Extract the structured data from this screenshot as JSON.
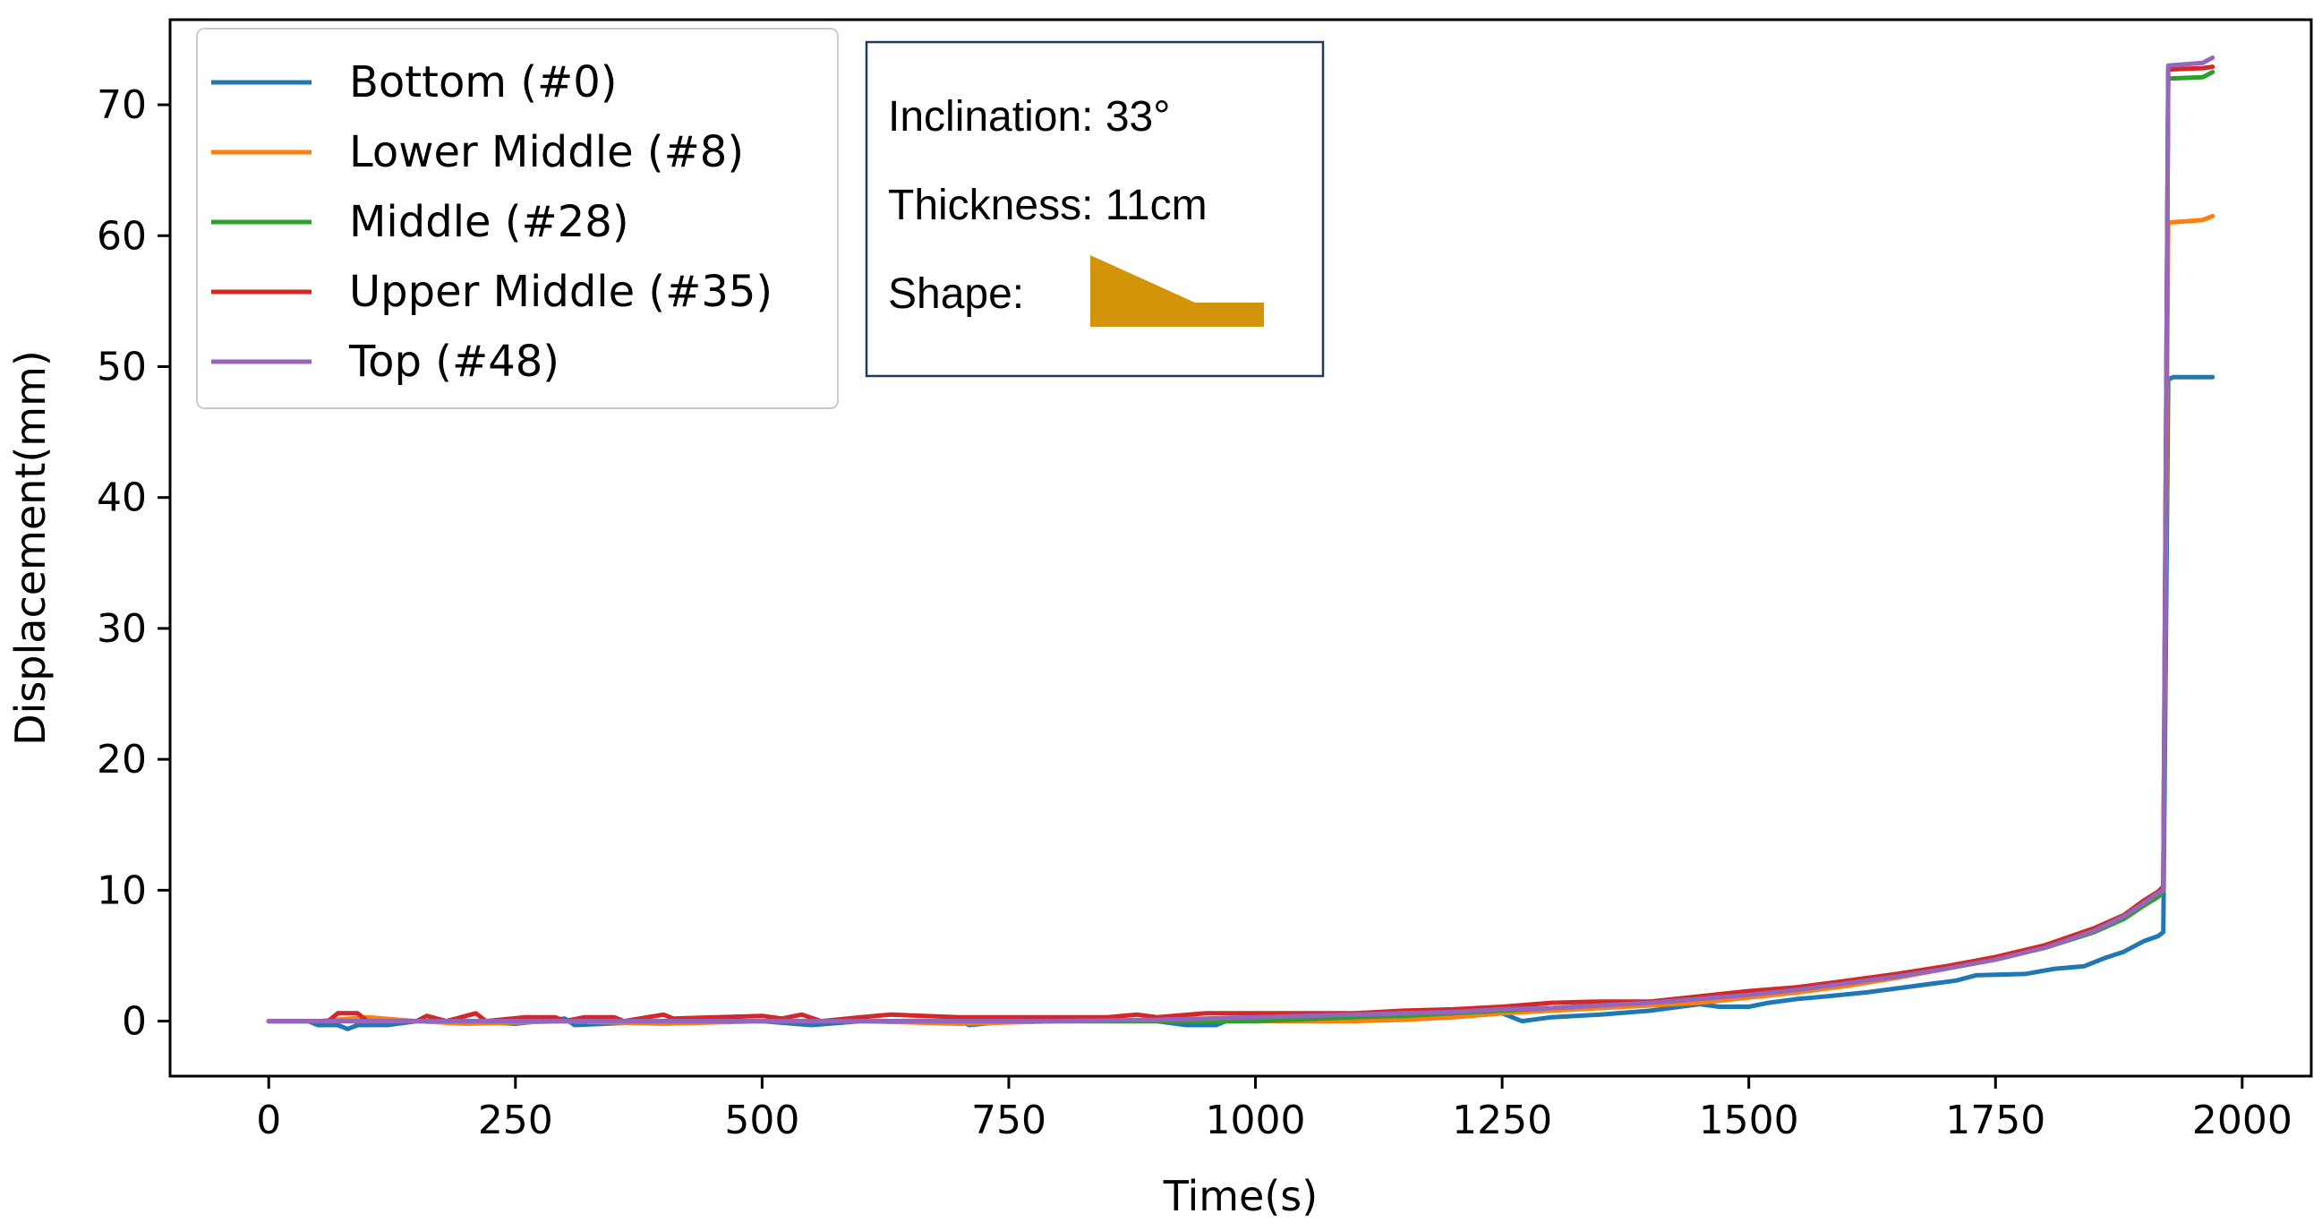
{
  "chart_data": {
    "type": "line",
    "title": "",
    "xlabel": "Time(s)",
    "ylabel": "Displacement(mm)",
    "xlim": [
      -100,
      2070
    ],
    "ylim": [
      -4.2,
      76.5
    ],
    "xticks": [
      0,
      250,
      500,
      750,
      1000,
      1250,
      1500,
      1750,
      2000
    ],
    "yticks": [
      0,
      10,
      20,
      30,
      40,
      50,
      60,
      70
    ],
    "grid": false,
    "legend_position": "upper-left",
    "series": [
      {
        "name": "Bottom (#0)",
        "color": "#1f77b4",
        "points": [
          [
            0,
            0
          ],
          [
            40,
            0
          ],
          [
            50,
            -0.3
          ],
          [
            70,
            -0.3
          ],
          [
            80,
            -0.6
          ],
          [
            90,
            -0.3
          ],
          [
            120,
            -0.3
          ],
          [
            150,
            0
          ],
          [
            200,
            0
          ],
          [
            250,
            -0.2
          ],
          [
            300,
            0.2
          ],
          [
            310,
            -0.3
          ],
          [
            400,
            0
          ],
          [
            500,
            0
          ],
          [
            550,
            -0.3
          ],
          [
            600,
            0
          ],
          [
            700,
            0
          ],
          [
            710,
            -0.3
          ],
          [
            750,
            0
          ],
          [
            900,
            0
          ],
          [
            930,
            -0.3
          ],
          [
            960,
            -0.3
          ],
          [
            970,
            0
          ],
          [
            1000,
            0
          ],
          [
            1100,
            0.2
          ],
          [
            1200,
            0.3
          ],
          [
            1250,
            0.6
          ],
          [
            1270,
            0
          ],
          [
            1300,
            0.3
          ],
          [
            1350,
            0.5
          ],
          [
            1400,
            0.8
          ],
          [
            1450,
            1.3
          ],
          [
            1470,
            1.1
          ],
          [
            1500,
            1.1
          ],
          [
            1520,
            1.4
          ],
          [
            1550,
            1.7
          ],
          [
            1580,
            1.9
          ],
          [
            1620,
            2.2
          ],
          [
            1650,
            2.5
          ],
          [
            1680,
            2.8
          ],
          [
            1710,
            3.1
          ],
          [
            1730,
            3.5
          ],
          [
            1780,
            3.6
          ],
          [
            1810,
            4.0
          ],
          [
            1840,
            4.2
          ],
          [
            1860,
            4.8
          ],
          [
            1880,
            5.3
          ],
          [
            1900,
            6.1
          ],
          [
            1915,
            6.5
          ],
          [
            1920,
            6.8
          ],
          [
            1925,
            49.0
          ],
          [
            1930,
            49.2
          ],
          [
            1970,
            49.2
          ]
        ]
      },
      {
        "name": "Lower Middle (#8)",
        "color": "#ff7f0e",
        "points": [
          [
            0,
            0
          ],
          [
            50,
            0
          ],
          [
            100,
            0.3
          ],
          [
            150,
            0
          ],
          [
            200,
            -0.2
          ],
          [
            300,
            0
          ],
          [
            400,
            -0.2
          ],
          [
            500,
            0
          ],
          [
            600,
            0
          ],
          [
            700,
            -0.2
          ],
          [
            800,
            0
          ],
          [
            900,
            0
          ],
          [
            1000,
            0
          ],
          [
            1100,
            0
          ],
          [
            1150,
            0.1
          ],
          [
            1200,
            0.3
          ],
          [
            1250,
            0.6
          ],
          [
            1300,
            0.8
          ],
          [
            1350,
            1.0
          ],
          [
            1400,
            1.2
          ],
          [
            1450,
            1.4
          ],
          [
            1500,
            1.8
          ],
          [
            1550,
            2.2
          ],
          [
            1600,
            2.7
          ],
          [
            1650,
            3.3
          ],
          [
            1700,
            4.0
          ],
          [
            1750,
            4.8
          ],
          [
            1800,
            5.7
          ],
          [
            1850,
            6.9
          ],
          [
            1880,
            7.9
          ],
          [
            1900,
            8.9
          ],
          [
            1915,
            9.6
          ],
          [
            1920,
            10.0
          ],
          [
            1925,
            61.0
          ],
          [
            1960,
            61.2
          ],
          [
            1970,
            61.5
          ]
        ]
      },
      {
        "name": "Middle (#28)",
        "color": "#2ca02c",
        "points": [
          [
            0,
            0
          ],
          [
            100,
            0
          ],
          [
            200,
            0
          ],
          [
            300,
            0
          ],
          [
            400,
            0
          ],
          [
            500,
            0
          ],
          [
            600,
            0
          ],
          [
            700,
            0
          ],
          [
            800,
            0
          ],
          [
            900,
            0
          ],
          [
            1000,
            0
          ],
          [
            1100,
            0.3
          ],
          [
            1150,
            0.4
          ],
          [
            1200,
            0.6
          ],
          [
            1250,
            0.8
          ],
          [
            1300,
            1.0
          ],
          [
            1350,
            1.2
          ],
          [
            1400,
            1.5
          ],
          [
            1450,
            1.8
          ],
          [
            1500,
            2.1
          ],
          [
            1550,
            2.5
          ],
          [
            1600,
            3.0
          ],
          [
            1650,
            3.5
          ],
          [
            1700,
            4.1
          ],
          [
            1750,
            4.8
          ],
          [
            1800,
            5.6
          ],
          [
            1850,
            6.8
          ],
          [
            1880,
            7.8
          ],
          [
            1900,
            8.8
          ],
          [
            1915,
            9.5
          ],
          [
            1920,
            9.9
          ],
          [
            1925,
            72.0
          ],
          [
            1960,
            72.1
          ],
          [
            1970,
            72.5
          ]
        ]
      },
      {
        "name": "Upper Middle (#35)",
        "color": "#d62728",
        "points": [
          [
            0,
            0
          ],
          [
            60,
            0
          ],
          [
            70,
            0.6
          ],
          [
            90,
            0.6
          ],
          [
            100,
            0
          ],
          [
            150,
            0
          ],
          [
            160,
            0.4
          ],
          [
            180,
            0
          ],
          [
            210,
            0.6
          ],
          [
            220,
            0
          ],
          [
            260,
            0.3
          ],
          [
            290,
            0.3
          ],
          [
            300,
            0
          ],
          [
            320,
            0.3
          ],
          [
            350,
            0.3
          ],
          [
            360,
            0
          ],
          [
            400,
            0.5
          ],
          [
            410,
            0.2
          ],
          [
            500,
            0.4
          ],
          [
            520,
            0.2
          ],
          [
            540,
            0.5
          ],
          [
            560,
            0
          ],
          [
            600,
            0.3
          ],
          [
            630,
            0.5
          ],
          [
            700,
            0.3
          ],
          [
            800,
            0.3
          ],
          [
            850,
            0.3
          ],
          [
            880,
            0.5
          ],
          [
            900,
            0.3
          ],
          [
            950,
            0.6
          ],
          [
            1000,
            0.6
          ],
          [
            1100,
            0.6
          ],
          [
            1150,
            0.8
          ],
          [
            1200,
            0.9
          ],
          [
            1250,
            1.1
          ],
          [
            1300,
            1.4
          ],
          [
            1350,
            1.5
          ],
          [
            1400,
            1.5
          ],
          [
            1450,
            1.9
          ],
          [
            1500,
            2.3
          ],
          [
            1550,
            2.6
          ],
          [
            1600,
            3.1
          ],
          [
            1650,
            3.6
          ],
          [
            1700,
            4.2
          ],
          [
            1750,
            4.9
          ],
          [
            1800,
            5.8
          ],
          [
            1850,
            7.1
          ],
          [
            1880,
            8.1
          ],
          [
            1900,
            9.2
          ],
          [
            1915,
            9.9
          ],
          [
            1920,
            10.3
          ],
          [
            1925,
            72.7
          ],
          [
            1960,
            72.8
          ],
          [
            1970,
            72.9
          ]
        ]
      },
      {
        "name": "Top (#48)",
        "color": "#9467bd",
        "points": [
          [
            0,
            0
          ],
          [
            100,
            0
          ],
          [
            200,
            0
          ],
          [
            300,
            0
          ],
          [
            400,
            0
          ],
          [
            500,
            0
          ],
          [
            600,
            0
          ],
          [
            700,
            0
          ],
          [
            800,
            0
          ],
          [
            900,
            0.1
          ],
          [
            1000,
            0.3
          ],
          [
            1100,
            0.5
          ],
          [
            1150,
            0.6
          ],
          [
            1200,
            0.7
          ],
          [
            1250,
            0.9
          ],
          [
            1300,
            1.0
          ],
          [
            1350,
            1.2
          ],
          [
            1400,
            1.4
          ],
          [
            1450,
            1.7
          ],
          [
            1500,
            2.0
          ],
          [
            1550,
            2.4
          ],
          [
            1600,
            2.9
          ],
          [
            1650,
            3.4
          ],
          [
            1700,
            4.0
          ],
          [
            1750,
            4.7
          ],
          [
            1800,
            5.6
          ],
          [
            1850,
            6.9
          ],
          [
            1880,
            8.0
          ],
          [
            1900,
            9.0
          ],
          [
            1915,
            9.8
          ],
          [
            1920,
            10.0
          ],
          [
            1925,
            73.0
          ],
          [
            1960,
            73.2
          ],
          [
            1970,
            73.6
          ]
        ]
      }
    ]
  },
  "info_box": {
    "inclination_label": "Inclination: 33°",
    "thickness_label": "Thickness: 11cm",
    "shape_label": "Shape:",
    "shape_color": "#d4940a"
  }
}
